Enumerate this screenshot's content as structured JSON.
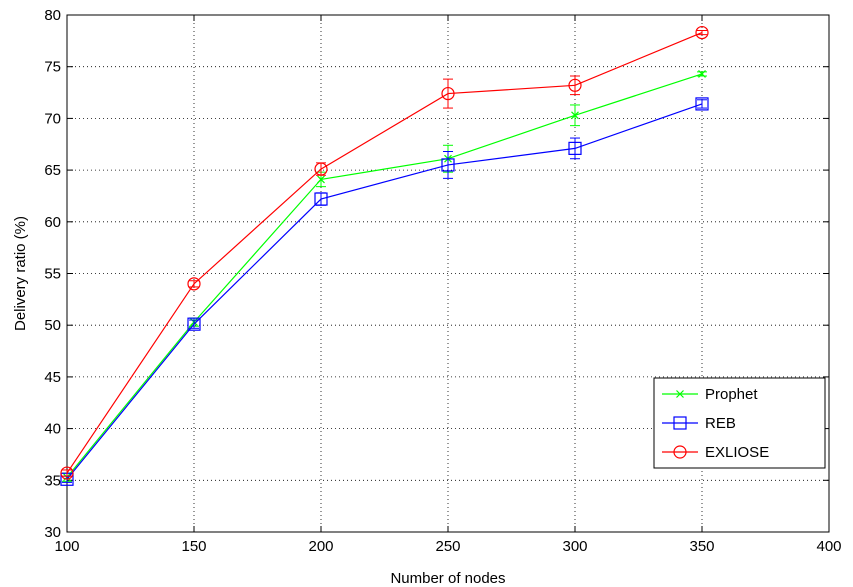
{
  "chart_data": {
    "type": "line",
    "title": "",
    "xlabel": "Number of nodes",
    "ylabel": "Delivery ratio (%)",
    "xlim": [
      100,
      400
    ],
    "ylim": [
      30,
      80
    ],
    "xticks": [
      100,
      150,
      200,
      250,
      300,
      350,
      400
    ],
    "yticks": [
      30,
      35,
      40,
      45,
      50,
      55,
      60,
      65,
      70,
      75,
      80
    ],
    "grid": true,
    "legend_position": "bottom-right",
    "x": [
      100,
      150,
      200,
      250,
      300,
      350
    ],
    "series": [
      {
        "name": "Prophet",
        "color": "#00ff00",
        "marker": "x",
        "values": [
          35.3,
          50.3,
          64.1,
          66.1,
          70.3,
          74.3
        ],
        "errors": [
          0.4,
          0.4,
          0.7,
          1.3,
          1.0,
          0.2
        ]
      },
      {
        "name": "REB",
        "color": "#0000ff",
        "marker": "square",
        "values": [
          35.1,
          50.1,
          62.2,
          65.5,
          67.1,
          71.4
        ],
        "errors": [
          0.3,
          0.4,
          0.6,
          1.3,
          1.0,
          0.4
        ]
      },
      {
        "name": "EXLIOSE",
        "color": "#ff0000",
        "marker": "circle",
        "values": [
          35.7,
          54.0,
          65.1,
          72.4,
          73.2,
          78.3
        ],
        "errors": [
          0.3,
          0.3,
          0.6,
          1.4,
          0.9,
          0.2
        ]
      }
    ]
  }
}
